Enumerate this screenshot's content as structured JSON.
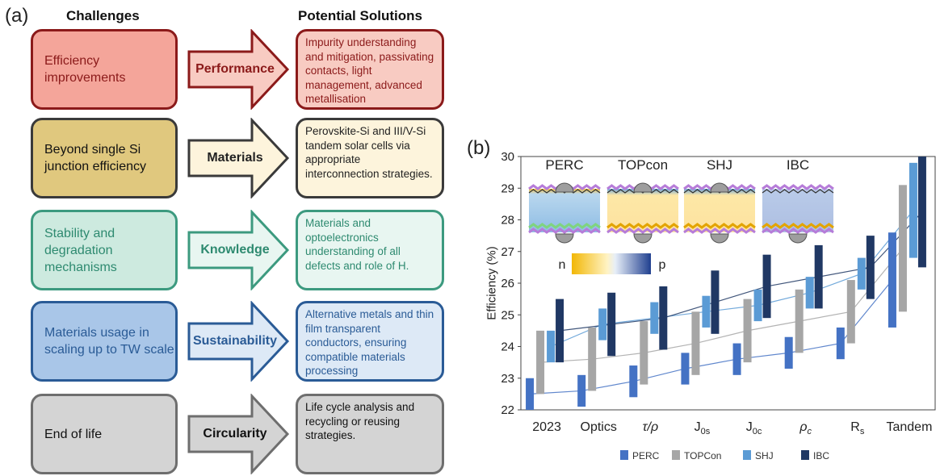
{
  "panel_a": {
    "label": "(a)",
    "challenges_header": "Challenges",
    "solutions_header": "Potential Solutions",
    "rows": [
      {
        "challenge": "Efficiency improvements",
        "arrow": "Performance",
        "solution": "Impurity understanding and mitigation, passivating contacts, light management, advanced metallisation",
        "fill": "#f4a59a",
        "border": "#8b1a1a",
        "solution_fill": "#f8cbc2",
        "text_color": "#8b1a1a"
      },
      {
        "challenge": "Beyond single Si junction efficiency",
        "arrow": "Materials",
        "solution": "Perovskite-Si and III/V-Si tandem solar cells via appropriate interconnection strategies.",
        "fill": "#e0c87e",
        "border": "#3a3a3a",
        "solution_fill": "#fdf4dc",
        "text_color": "#222222"
      },
      {
        "challenge": "Stability and degradation mechanisms",
        "arrow": "Knowledge",
        "solution": "Materials and optoelectronics understanding of all defects and role of H.",
        "fill": "#cdeadf",
        "border": "#3c9a7f",
        "solution_fill": "#e8f6f1",
        "text_color": "#2e8a70"
      },
      {
        "challenge": "Materials usage in scaling up to TW scale",
        "arrow": "Sustainability",
        "solution": "Alternative metals and thin film transparent conductors, ensuring compatible materials processing",
        "fill": "#a9c6e8",
        "border": "#2a5b96",
        "solution_fill": "#dde9f6",
        "text_color": "#2a5b96"
      },
      {
        "challenge": "End of life",
        "arrow": "Circularity",
        "solution": "Life cycle analysis and recycling or reusing strategies.",
        "fill": "#d4d4d4",
        "border": "#6e6e6e",
        "solution_fill": "#d4d4d4",
        "text_color": "#111111"
      }
    ]
  },
  "panel_b": {
    "label": "(b)",
    "cell_names": [
      "PERC",
      "TOPcon",
      "SHJ",
      "IBC"
    ],
    "gradient_labels": {
      "n": "n",
      "p": "p"
    }
  },
  "chart_data": {
    "type": "bar",
    "title": "",
    "xlabel": "",
    "ylabel": "Efficiency (%)",
    "ylim": [
      22,
      30
    ],
    "yticks": [
      22,
      23,
      24,
      25,
      26,
      27,
      28,
      29,
      30
    ],
    "categories": [
      "2023",
      "Optics",
      "τ/ρ",
      "J0s",
      "J0c",
      "ρc",
      "Rs",
      "Tandem"
    ],
    "series": [
      {
        "name": "PERC",
        "color": "#4472c4",
        "ranges": [
          [
            22.0,
            23.0
          ],
          [
            22.1,
            23.1
          ],
          [
            22.4,
            23.4
          ],
          [
            22.8,
            23.8
          ],
          [
            23.1,
            24.1
          ],
          [
            23.3,
            24.3
          ],
          [
            23.6,
            24.6
          ],
          [
            24.6,
            27.6
          ]
        ]
      },
      {
        "name": "TOPCon",
        "color": "#a6a6a6",
        "ranges": [
          [
            22.5,
            24.5
          ],
          [
            22.6,
            24.6
          ],
          [
            22.8,
            24.8
          ],
          [
            23.1,
            25.1
          ],
          [
            23.5,
            25.5
          ],
          [
            23.8,
            25.8
          ],
          [
            24.1,
            26.1
          ],
          [
            25.1,
            29.1
          ]
        ]
      },
      {
        "name": "SHJ",
        "color": "#5b9bd5",
        "ranges": [
          [
            23.5,
            24.5
          ],
          [
            24.2,
            25.2
          ],
          [
            24.4,
            25.4
          ],
          [
            24.6,
            25.6
          ],
          [
            24.8,
            25.8
          ],
          [
            25.2,
            26.2
          ],
          [
            25.8,
            26.8
          ],
          [
            26.8,
            29.8
          ]
        ]
      },
      {
        "name": "IBC",
        "color": "#203864",
        "ranges": [
          [
            23.5,
            25.5
          ],
          [
            23.7,
            25.7
          ],
          [
            23.9,
            25.9
          ],
          [
            24.4,
            26.4
          ],
          [
            24.9,
            26.9
          ],
          [
            25.2,
            27.2
          ],
          [
            25.5,
            27.5
          ],
          [
            26.5,
            30.0
          ]
        ]
      }
    ]
  }
}
